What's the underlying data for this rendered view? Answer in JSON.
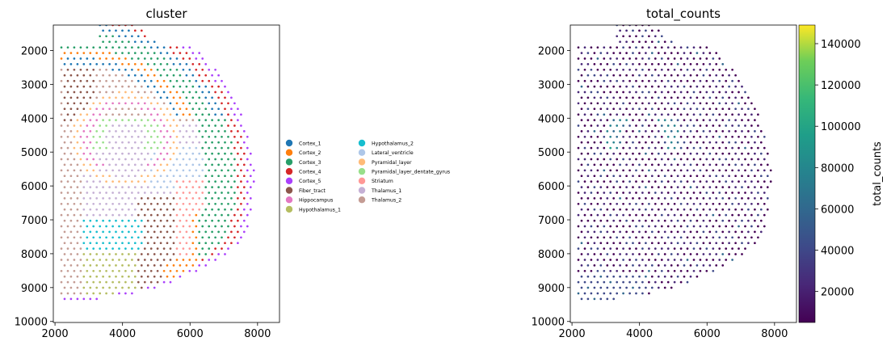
{
  "chart_data": [
    {
      "type": "scatter",
      "title": "cluster",
      "xlim": [
        1950,
        8650
      ],
      "ylim": [
        10030,
        1250
      ],
      "y_inverted": true,
      "xticks": [
        2000,
        4000,
        6000,
        8000
      ],
      "yticks": [
        2000,
        3000,
        4000,
        5000,
        6000,
        7000,
        8000,
        9000,
        10000
      ],
      "grid": false,
      "legend_placement": "right, two columns",
      "legend": [
        {
          "label": "Cortex_1",
          "color": "#1f77b4"
        },
        {
          "label": "Cortex_2",
          "color": "#ff7f0e"
        },
        {
          "label": "Cortex_3",
          "color": "#279e68"
        },
        {
          "label": "Cortex_4",
          "color": "#d62728"
        },
        {
          "label": "Cortex_5",
          "color": "#aa40fc"
        },
        {
          "label": "Fiber_tract",
          "color": "#8c564b"
        },
        {
          "label": "Hippocampus",
          "color": "#e377c2"
        },
        {
          "label": "Hypothalamus_1",
          "color": "#b5bd61"
        },
        {
          "label": "Hypothalamus_2",
          "color": "#17becf"
        },
        {
          "label": "Lateral_ventricle",
          "color": "#aec7e8"
        },
        {
          "label": "Pyramidal_layer",
          "color": "#ffbb78"
        },
        {
          "label": "Pyramidal_layer_dentate_gyrus",
          "color": "#98df8a"
        },
        {
          "label": "Striatum",
          "color": "#ff9896"
        },
        {
          "label": "Thalamus_1",
          "color": "#c5b0d5"
        },
        {
          "label": "Thalamus_2",
          "color": "#c49c94"
        }
      ]
    },
    {
      "type": "scatter",
      "title": "total_counts",
      "xlim": [
        1950,
        8650
      ],
      "ylim": [
        10030,
        1250
      ],
      "y_inverted": true,
      "xticks": [
        2000,
        4000,
        6000,
        8000
      ],
      "yticks": [
        2000,
        3000,
        4000,
        5000,
        6000,
        7000,
        8000,
        9000,
        10000
      ],
      "grid": false,
      "colorbar": {
        "label": "total_counts",
        "colormap": "viridis",
        "range": [
          5000,
          149000
        ],
        "ticks": [
          20000,
          40000,
          60000,
          80000,
          100000,
          120000,
          140000
        ]
      }
    }
  ]
}
